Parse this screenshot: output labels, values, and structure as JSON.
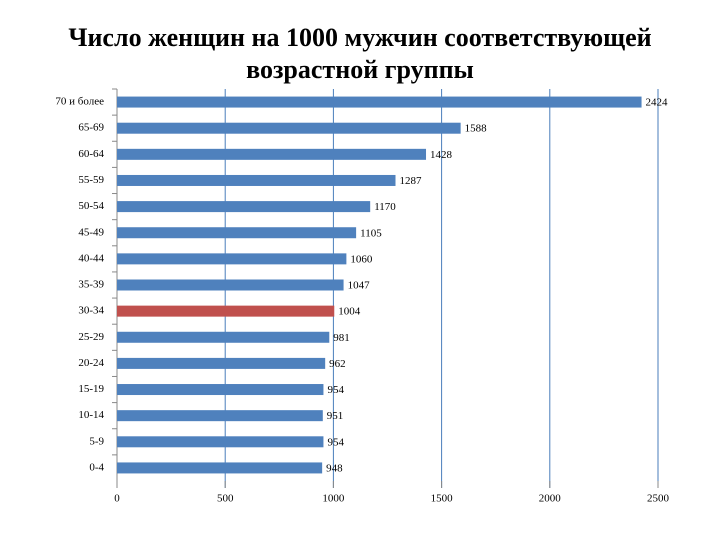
{
  "chart_data": {
    "type": "barh",
    "title": [
      "Число женщин на 1000 мужчин соответствующей",
      "возрастной группы"
    ],
    "categories": [
      "70 и более",
      "65-69",
      "60-64",
      "55-59",
      "50-54",
      "45-49",
      "40-44",
      "35-39",
      "30-34",
      "25-29",
      "20-24",
      "15-19",
      "10-14",
      "5-9",
      "0-4"
    ],
    "values": [
      2424,
      1588,
      1428,
      1287,
      1170,
      1105,
      1060,
      1047,
      1004,
      981,
      962,
      954,
      951,
      954,
      948
    ],
    "colors": [
      "#4f81bd",
      "#4f81bd",
      "#4f81bd",
      "#4f81bd",
      "#4f81bd",
      "#4f81bd",
      "#4f81bd",
      "#4f81bd",
      "#c0504d",
      "#4f81bd",
      "#4f81bd",
      "#4f81bd",
      "#4f81bd",
      "#4f81bd",
      "#4f81bd"
    ],
    "xlim": [
      0,
      2500
    ],
    "xticks": [
      0,
      500,
      1000,
      1500,
      2000,
      2500
    ],
    "grid": true
  }
}
